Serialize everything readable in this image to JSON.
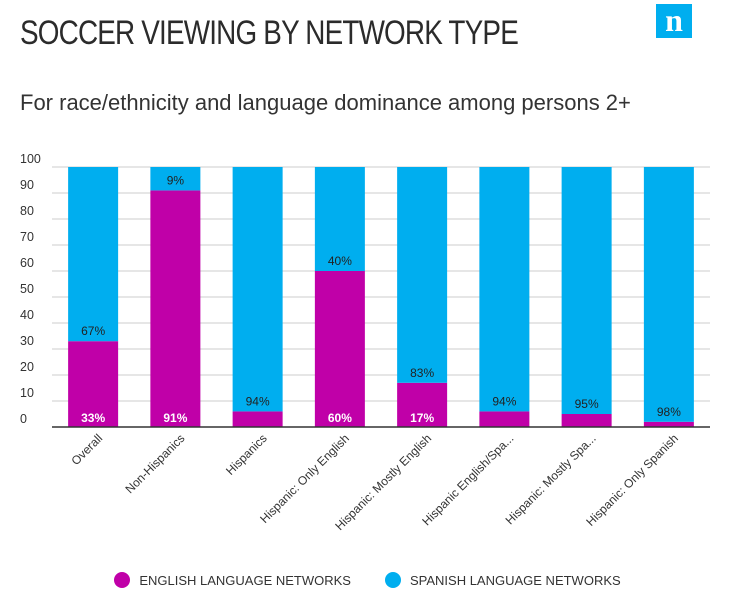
{
  "header": {
    "title": "SOCCER VIEWING BY NETWORK TYPE",
    "subtitle": "For race/ethnicity and language dominance among persons 2+",
    "logo_letter": "n"
  },
  "colors": {
    "english": "#c000a8",
    "spanish": "#00aeef",
    "grid": "#999999",
    "axis": "#333333",
    "logo": "#00aeef"
  },
  "legend": {
    "english": "ENGLISH LANGUAGE NETWORKS",
    "spanish": "SPANISH LANGUAGE NETWORKS"
  },
  "chart_data": {
    "type": "bar",
    "stacked": true,
    "categories": [
      "Overall",
      "Non-Hispanics",
      "Hispanics",
      "Hispanic: Only English",
      "Hispanic: Mostly English",
      "Hispanic English/Spa...",
      "Hispanic: Mostly Spa...",
      "Hispanic: Only Spanish"
    ],
    "series": [
      {
        "name": "ENGLISH LANGUAGE NETWORKS",
        "values": [
          33,
          91,
          6,
          60,
          17,
          6,
          5,
          2
        ],
        "labels": [
          "33%",
          "91%",
          "",
          "60%",
          "17%",
          "",
          "",
          ""
        ]
      },
      {
        "name": "SPANISH LANGUAGE NETWORKS",
        "values": [
          67,
          9,
          94,
          40,
          83,
          94,
          95,
          98
        ],
        "labels": [
          "67%",
          "9%",
          "94%",
          "40%",
          "83%",
          "94%",
          "95%",
          "98%"
        ]
      }
    ],
    "ylim": [
      0,
      100
    ],
    "yticks": [
      0,
      10,
      20,
      30,
      40,
      50,
      60,
      70,
      80,
      90,
      100
    ],
    "grid": true,
    "legend_position": "bottom"
  }
}
